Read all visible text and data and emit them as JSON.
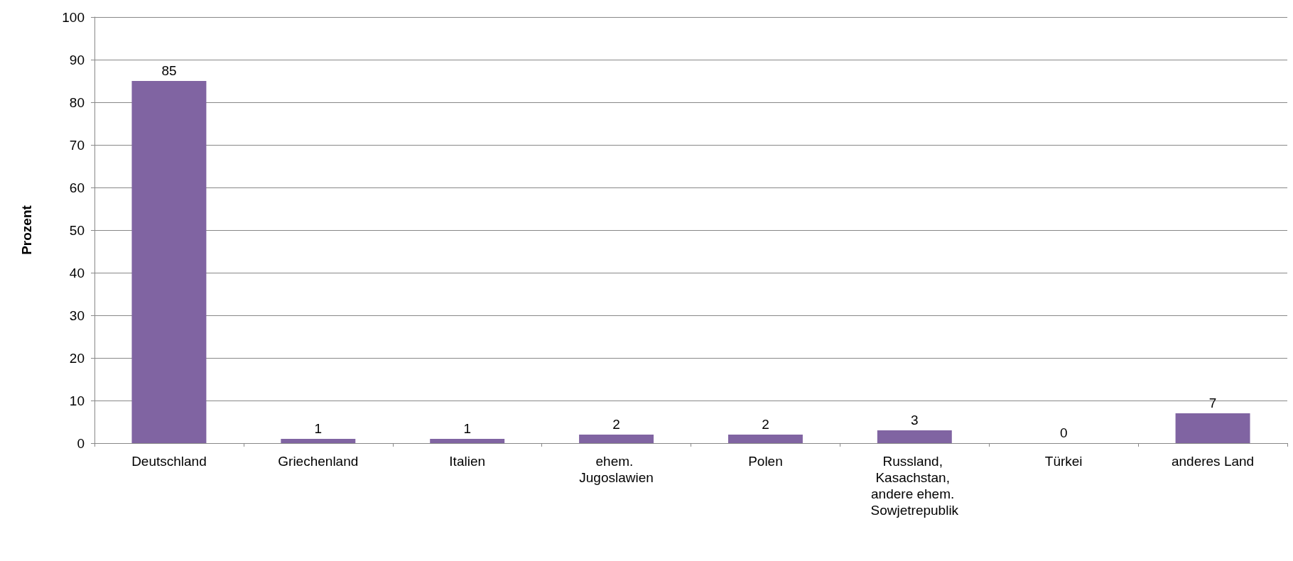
{
  "chart_data": {
    "type": "bar",
    "ylabel": "Prozent",
    "categories": [
      "Deutschland",
      "Griechenland",
      "Italien",
      "ehem. Jugoslawien",
      "Polen",
      "Russland, Kasachstan, andere ehem. Sowjetrepublik",
      "Türkei",
      "anderes Land"
    ],
    "values": [
      85,
      1,
      1,
      2,
      2,
      3,
      0,
      7
    ],
    "color": "#8064a2",
    "ylim": [
      0,
      100
    ],
    "yticks": [
      0,
      10,
      20,
      30,
      40,
      50,
      60,
      70,
      80,
      90,
      100
    ],
    "grid": "y",
    "data_labels": true
  }
}
